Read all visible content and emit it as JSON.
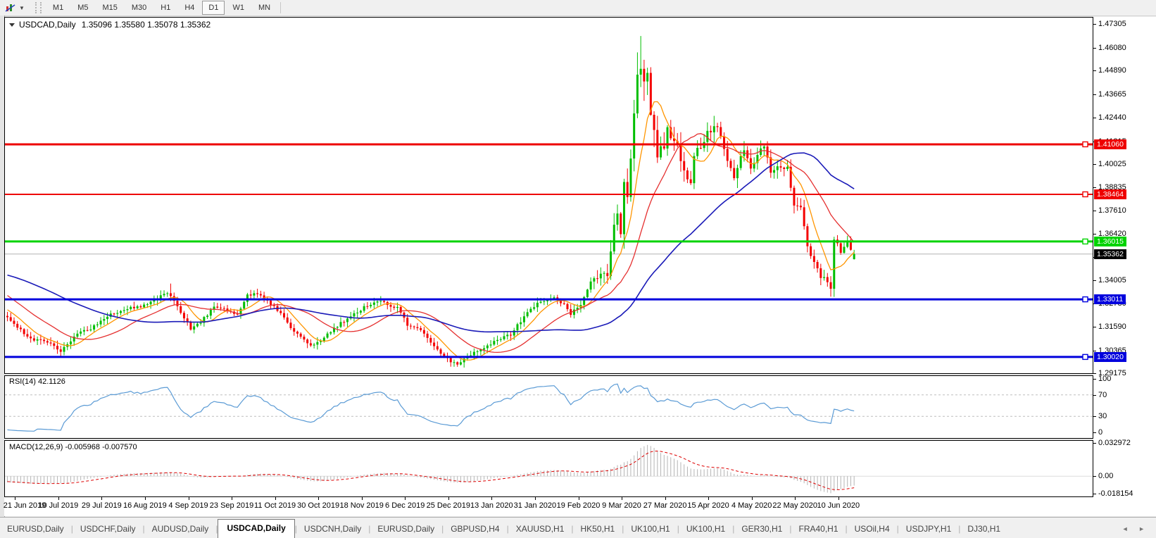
{
  "toolbar": {
    "indicators_tooltip": "indicators",
    "timeframes": [
      "M1",
      "M5",
      "M15",
      "M30",
      "H1",
      "H4",
      "D1",
      "W1",
      "MN"
    ],
    "active_timeframe": "D1"
  },
  "chart": {
    "header": {
      "symbol": "USDCAD,Daily",
      "ohlc_text": "1.35096 1.35580 1.35078 1.35362"
    }
  },
  "chart_data": {
    "type": "candlestick",
    "symbol": "USDCAD",
    "timeframe": "Daily",
    "last_ohlc": {
      "open": 1.35096,
      "high": 1.3558,
      "low": 1.35078,
      "close": 1.35362
    },
    "y_axis": {
      "ticks": [
        "1.47305",
        "1.46080",
        "1.44890",
        "1.43665",
        "1.42440",
        "1.41215",
        "1.40025",
        "1.38835",
        "1.37610",
        "1.36420",
        "1.35195",
        "1.34005",
        "1.32780",
        "1.31590",
        "1.30365",
        "1.29175"
      ],
      "price_top": 1.4764,
      "price_bottom": 1.29175
    },
    "x_axis": {
      "dates": [
        "21 Jun 2019",
        "10 Jul 2019",
        "29 Jul 2019",
        "16 Aug 2019",
        "4 Sep 2019",
        "23 Sep 2019",
        "11 Oct 2019",
        "30 Oct 2019",
        "18 Nov 2019",
        "6 Dec 2019",
        "25 Dec 2019",
        "13 Jan 2020",
        "31 Jan 2020",
        "19 Feb 2020",
        "9 Mar 2020",
        "27 Mar 2020",
        "15 Apr 2020",
        "4 May 2020",
        "22 May 2020",
        "10 Jun 2020"
      ],
      "candles_per_tick": 13,
      "first_tick_candle": 1
    },
    "hlines": [
      {
        "price": 1.4106,
        "label": "1.41060",
        "color": "#ee0000",
        "width": 3
      },
      {
        "price": 1.38464,
        "label": "1.38464",
        "color": "#ee0000",
        "width": 2
      },
      {
        "price": 1.36015,
        "label": "1.36015",
        "color": "#00d300",
        "width": 3
      },
      {
        "price": 1.33011,
        "label": "1.33011",
        "color": "#0000dd",
        "width": 3
      },
      {
        "price": 1.3002,
        "label": "1.30020",
        "color": "#0000dd",
        "width": 3
      }
    ],
    "current_price": {
      "value": 1.35362,
      "label": "1.35362",
      "line_color": "#b4b4b4",
      "badge_color": "#000000"
    },
    "colors": {
      "up": "#00be00",
      "down": "#f40000"
    },
    "moving_averages": [
      {
        "period": 8,
        "color": "#ff9500"
      },
      {
        "period": 21,
        "color": "#e53030"
      },
      {
        "period": 55,
        "color": "#1a1ab8"
      }
    ],
    "candles_total": 255,
    "prehistory_bars": 60,
    "close_anchors": [
      [
        -60,
        1.343
      ],
      [
        -45,
        1.3495
      ],
      [
        -30,
        1.352
      ],
      [
        -20,
        1.345
      ],
      [
        -10,
        1.331
      ],
      [
        -3,
        1.3245
      ],
      [
        0,
        1.321
      ],
      [
        4,
        1.314
      ],
      [
        8,
        1.309
      ],
      [
        13,
        1.3075
      ],
      [
        16,
        1.3035
      ],
      [
        21,
        1.312
      ],
      [
        26,
        1.316
      ],
      [
        30,
        1.3215
      ],
      [
        35,
        1.325
      ],
      [
        39,
        1.326
      ],
      [
        44,
        1.33
      ],
      [
        48,
        1.3335
      ],
      [
        50,
        1.33
      ],
      [
        52,
        1.3235
      ],
      [
        55,
        1.315
      ],
      [
        58,
        1.3185
      ],
      [
        62,
        1.326
      ],
      [
        65,
        1.3255
      ],
      [
        69,
        1.322
      ],
      [
        72,
        1.332
      ],
      [
        75,
        1.3335
      ],
      [
        78,
        1.329
      ],
      [
        82,
        1.323
      ],
      [
        86,
        1.313
      ],
      [
        90,
        1.3075
      ],
      [
        91,
        1.306
      ],
      [
        95,
        1.31
      ],
      [
        99,
        1.3165
      ],
      [
        104,
        1.3225
      ],
      [
        108,
        1.327
      ],
      [
        112,
        1.329
      ],
      [
        115,
        1.327
      ],
      [
        117,
        1.3255
      ],
      [
        120,
        1.317
      ],
      [
        124,
        1.3135
      ],
      [
        127,
        1.308
      ],
      [
        130,
        1.3015
      ],
      [
        133,
        1.2975
      ],
      [
        135,
        1.296
      ],
      [
        138,
        1.301
      ],
      [
        141,
        1.3035
      ],
      [
        143,
        1.305
      ],
      [
        147,
        1.309
      ],
      [
        151,
        1.312
      ],
      [
        156,
        1.3235
      ],
      [
        160,
        1.329
      ],
      [
        164,
        1.3305
      ],
      [
        167,
        1.327
      ],
      [
        169,
        1.3225
      ],
      [
        172,
        1.328
      ],
      [
        175,
        1.339
      ],
      [
        178,
        1.343
      ],
      [
        180,
        1.342
      ],
      [
        182,
        1.369
      ],
      [
        183,
        1.373
      ],
      [
        184,
        1.365
      ],
      [
        185,
        1.392
      ],
      [
        186,
        1.386
      ],
      [
        187,
        1.401
      ],
      [
        188,
        1.424
      ],
      [
        189,
        1.45
      ],
      [
        190,
        1.446
      ],
      [
        191,
        1.443
      ],
      [
        192,
        1.448
      ],
      [
        193,
        1.428
      ],
      [
        194,
        1.418
      ],
      [
        195,
        1.403
      ],
      [
        196,
        1.409
      ],
      [
        197,
        1.406
      ],
      [
        198,
        1.421
      ],
      [
        199,
        1.414
      ],
      [
        201,
        1.409
      ],
      [
        203,
        1.396
      ],
      [
        205,
        1.39
      ],
      [
        206,
        1.405
      ],
      [
        208,
        1.409
      ],
      [
        210,
        1.416
      ],
      [
        212,
        1.421
      ],
      [
        214,
        1.416
      ],
      [
        216,
        1.403
      ],
      [
        218,
        1.394
      ],
      [
        221,
        1.409
      ],
      [
        223,
        1.398
      ],
      [
        225,
        1.405
      ],
      [
        227,
        1.41
      ],
      [
        229,
        1.396
      ],
      [
        231,
        1.398
      ],
      [
        234,
        1.399
      ],
      [
        236,
        1.378
      ],
      [
        238,
        1.377
      ],
      [
        240,
        1.357
      ],
      [
        242,
        1.349
      ],
      [
        244,
        1.342
      ],
      [
        246,
        1.339
      ],
      [
        247,
        1.336
      ],
      [
        248,
        1.362
      ],
      [
        249,
        1.358
      ],
      [
        250,
        1.354
      ],
      [
        251,
        1.3575
      ],
      [
        252,
        1.36
      ],
      [
        253,
        1.356
      ],
      [
        254,
        1.3536
      ]
    ],
    "volatility_anchors": [
      [
        -60,
        0.0025
      ],
      [
        0,
        0.0028
      ],
      [
        48,
        0.0032
      ],
      [
        52,
        0.0026
      ],
      [
        130,
        0.003
      ],
      [
        169,
        0.003
      ],
      [
        178,
        0.005
      ],
      [
        182,
        0.0085
      ],
      [
        186,
        0.011
      ],
      [
        190,
        0.015
      ],
      [
        193,
        0.012
      ],
      [
        196,
        0.0095
      ],
      [
        200,
        0.008
      ],
      [
        208,
        0.007
      ],
      [
        216,
        0.006
      ],
      [
        230,
        0.0055
      ],
      [
        240,
        0.005
      ],
      [
        248,
        0.0048
      ],
      [
        254,
        0.0035
      ]
    ],
    "overrides": [
      {
        "i": 49,
        "high": 1.3383
      },
      {
        "i": 135,
        "low": 1.2951
      },
      {
        "i": 190,
        "high": 1.46685
      },
      {
        "i": 247,
        "low": 1.3315
      },
      {
        "i": 254,
        "open": 1.35096,
        "high": 1.3558,
        "low": 1.35078,
        "close": 1.35362
      }
    ]
  },
  "rsi": {
    "title": "RSI(14) 42.1126",
    "period": 14,
    "value": 42.1126,
    "color": "#5b9bd5",
    "levels": [
      {
        "value": 100,
        "label": "100"
      },
      {
        "value": 70,
        "label": "70"
      },
      {
        "value": 30,
        "label": "30"
      },
      {
        "value": 0,
        "label": "0"
      }
    ],
    "dashed_levels": [
      70,
      30
    ]
  },
  "macd": {
    "title": "MACD(12,26,9) -0.005968 -0.007570",
    "fast": 12,
    "slow": 26,
    "signal": 9,
    "main_value": -0.005968,
    "signal_value": -0.00757,
    "hist_color": "#b4b4b4",
    "signal_color": "#dd0000",
    "scale": [
      {
        "value": 0.032972,
        "label": "0.032972"
      },
      {
        "value": 0,
        "label": "0.00"
      },
      {
        "value": -0.018154,
        "label": "-0.018154"
      }
    ],
    "scale_top": 0.0345,
    "scale_bottom": -0.0198
  },
  "tabs": {
    "separator": "|",
    "active_index": 3,
    "nav_prev": "◄",
    "nav_next": "►",
    "items": [
      "EURUSD,Daily",
      "USDCHF,Daily",
      "AUDUSD,Daily",
      "USDCAD,Daily",
      "USDCNH,Daily",
      "EURUSD,Daily",
      "GBPUSD,H4",
      "XAUUSD,H1",
      "HK50,H1",
      "UK100,H1",
      "UK100,H1",
      "GER30,H1",
      "FRA40,H1",
      "USOil,H4",
      "USDJPY,H1",
      "DJ30,H1"
    ]
  }
}
